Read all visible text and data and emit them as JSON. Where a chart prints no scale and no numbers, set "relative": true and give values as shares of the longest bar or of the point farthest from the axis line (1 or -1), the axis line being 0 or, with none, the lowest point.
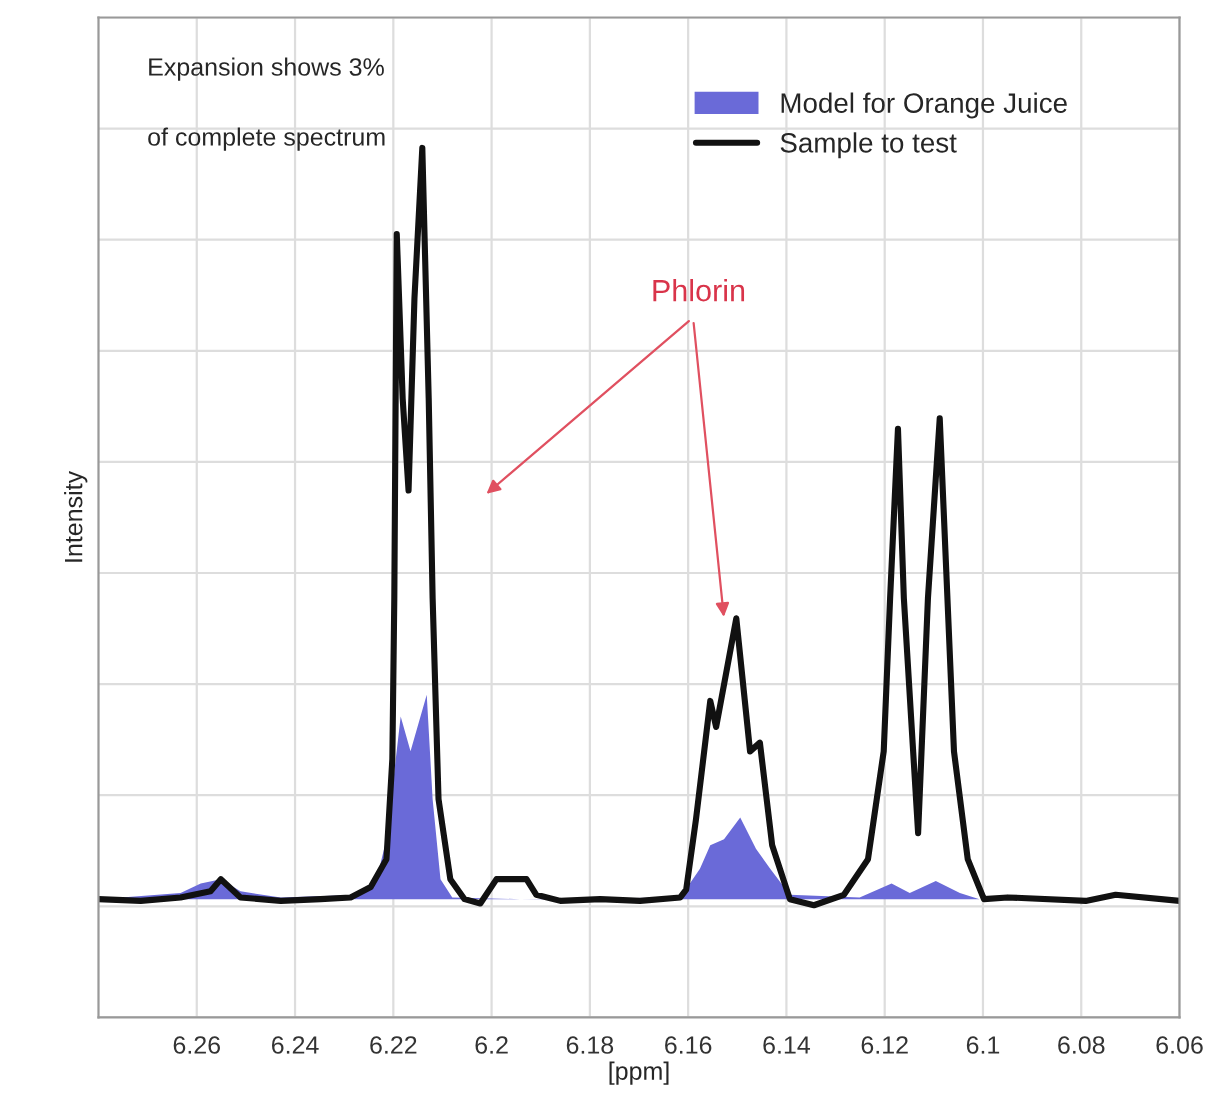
{
  "chart_data": {
    "type": "line",
    "relative": true,
    "xlabel": "[ppm]",
    "ylabel": "Intensity",
    "xlim": [
      6.28,
      6.06
    ],
    "xticks": [
      6.26,
      6.24,
      6.22,
      6.2,
      6.18,
      6.16,
      6.14,
      6.12,
      6.1,
      6.08,
      6.06
    ],
    "grid": true,
    "tick_labels": "x",
    "legend": "top right",
    "marker": "none",
    "line_style": "solid",
    "series": [
      {
        "name": "Model for Orange Juice",
        "type": "area",
        "color": "#6a6ad8",
        "x": [
          6.28,
          6.2633,
          6.2592,
          6.2551,
          6.2511,
          6.2429,
          6.2267,
          6.2234,
          6.2214,
          6.2185,
          6.2165,
          6.2132,
          6.212,
          6.2104,
          6.208,
          6.1942,
          6.1616,
          6.1576,
          6.1555,
          6.1527,
          6.1494,
          6.1462,
          6.1433,
          6.1393,
          6.1251,
          6.1186,
          6.1149,
          6.1096,
          6.1047,
          6.1007,
          6.06
        ],
        "values": [
          0.136,
          0.143,
          0.154,
          0.159,
          0.145,
          0.138,
          0.141,
          0.159,
          0.205,
          0.346,
          0.306,
          0.371,
          0.251,
          0.159,
          0.138,
          0.136,
          0.138,
          0.171,
          0.198,
          0.205,
          0.23,
          0.194,
          0.171,
          0.141,
          0.138,
          0.154,
          0.143,
          0.157,
          0.143,
          0.136,
          0.136
        ]
      },
      {
        "name": "Sample to test",
        "color": "#111111",
        "x": [
          6.28,
          6.2714,
          6.2633,
          6.2572,
          6.2551,
          6.2511,
          6.2429,
          6.2348,
          6.2287,
          6.2246,
          6.2214,
          6.2202,
          6.2198,
          6.2193,
          6.2181,
          6.2169,
          6.2157,
          6.2141,
          6.2128,
          6.212,
          6.2108,
          6.2084,
          6.2055,
          6.2023,
          6.199,
          6.1929,
          6.1909,
          6.186,
          6.1779,
          6.1698,
          6.1616,
          6.1604,
          6.1584,
          6.1555,
          6.1543,
          6.1502,
          6.1474,
          6.1454,
          6.1429,
          6.1393,
          6.1344,
          6.1283,
          6.1234,
          6.1202,
          6.1189,
          6.1173,
          6.1161,
          6.1132,
          6.1112,
          6.1088,
          6.1059,
          6.1031,
          6.0998,
          6.095,
          6.0791,
          6.073,
          6.06
        ],
        "values": [
          0.136,
          0.134,
          0.138,
          0.145,
          0.159,
          0.138,
          0.134,
          0.136,
          0.138,
          0.15,
          0.182,
          0.297,
          0.482,
          0.901,
          0.712,
          0.606,
          0.827,
          1.0,
          0.712,
          0.482,
          0.251,
          0.159,
          0.136,
          0.131,
          0.159,
          0.159,
          0.141,
          0.134,
          0.136,
          0.134,
          0.138,
          0.147,
          0.228,
          0.364,
          0.334,
          0.459,
          0.306,
          0.316,
          0.198,
          0.136,
          0.129,
          0.141,
          0.182,
          0.306,
          0.482,
          0.677,
          0.482,
          0.212,
          0.482,
          0.689,
          0.306,
          0.182,
          0.136,
          0.138,
          0.134,
          0.141,
          0.134
        ]
      }
    ],
    "annotations": [
      "Expansion shows 3%",
      "of complete spectrum",
      "Phlorin"
    ]
  }
}
